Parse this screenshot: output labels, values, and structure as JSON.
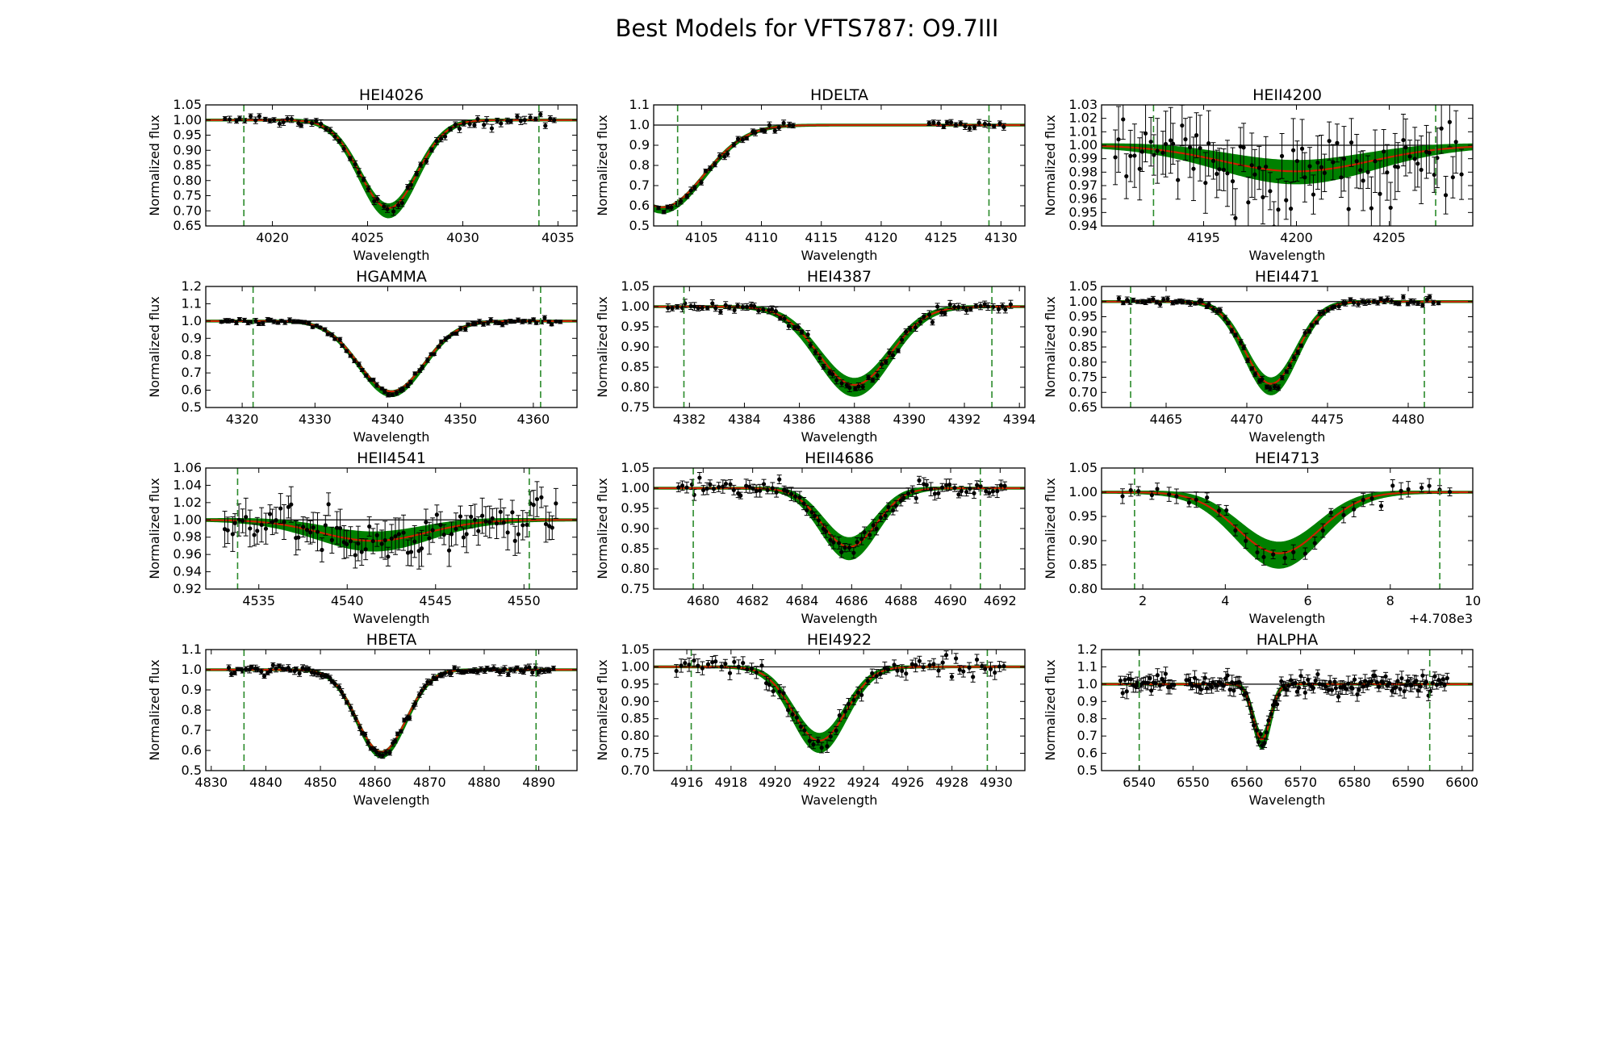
{
  "figure_title": "Best Models for VFTS787: O9.7III",
  "colors": {
    "model_band": "#008000",
    "best_fit": "#cc2200",
    "continuum": "#000000",
    "data": "#000000",
    "range_marker": "#2a8a2a"
  },
  "chart_data": [
    {
      "type": "line",
      "title": "HEI4026",
      "xlabel": "Wavelength",
      "ylabel": "Normalized flux",
      "xlim": [
        4016.5,
        4036
      ],
      "ylim": [
        0.65,
        1.05
      ],
      "xticks": [
        4020,
        4025,
        4030,
        4035
      ],
      "xtick_labels": [
        "4020",
        "4025",
        "4030",
        "4035"
      ],
      "yticks": [
        0.65,
        0.7,
        0.75,
        0.8,
        0.85,
        0.9,
        0.95,
        1.0,
        1.05
      ],
      "ytick_labels": [
        "0.65",
        "0.70",
        "0.75",
        "0.80",
        "0.85",
        "0.90",
        "0.95",
        "1.00",
        "1.05"
      ],
      "range_markers": [
        4018.5,
        4034
      ],
      "line_center": 4026.1,
      "depth": 0.3,
      "width": 1.5,
      "band": 0.02,
      "noise": 0.008,
      "n_points": 70,
      "data_extent": [
        4017.5,
        4035
      ],
      "axis_offset_label": ""
    },
    {
      "type": "line",
      "title": "HDELTA",
      "xlabel": "Wavelength",
      "ylabel": "Normalized flux",
      "xlim": [
        4101,
        4132
      ],
      "ylim": [
        0.5,
        1.1
      ],
      "xticks": [
        4105,
        4110,
        4115,
        4120,
        4125,
        4130
      ],
      "xtick_labels": [
        "4105",
        "4110",
        "4115",
        "4120",
        "4125",
        "4130"
      ],
      "yticks": [
        0.5,
        0.6,
        0.7,
        0.8,
        0.9,
        1.0,
        1.1
      ],
      "ytick_labels": [
        "0.5",
        "0.6",
        "0.7",
        "0.8",
        "0.9",
        "1.0",
        "1.1"
      ],
      "range_markers": [
        4103,
        4129
      ],
      "line_center": 4101.7,
      "depth": 0.42,
      "width": 3.5,
      "band": 0.012,
      "noise": 0.01,
      "n_points": 75,
      "data_extent": [
        4101.3,
        4130.5
      ],
      "data_gap": [
        4113,
        4124
      ],
      "axis_offset_label": ""
    },
    {
      "type": "line",
      "title": "HEII4200",
      "xlabel": "Wavelength",
      "ylabel": "Normalized flux",
      "xlim": [
        4189.5,
        4209.5
      ],
      "ylim": [
        0.94,
        1.03
      ],
      "xticks": [
        4195,
        4200,
        4205
      ],
      "xtick_labels": [
        "4195",
        "4200",
        "4205"
      ],
      "yticks": [
        0.94,
        0.95,
        0.96,
        0.97,
        0.98,
        0.99,
        1.0,
        1.01,
        1.02,
        1.03
      ],
      "ytick_labels": [
        "0.94",
        "0.95",
        "0.96",
        "0.97",
        "0.98",
        "0.99",
        "1.00",
        "1.01",
        "1.02",
        "1.03"
      ],
      "range_markers": [
        4192.3,
        4207.5
      ],
      "line_center": 4200,
      "depth": 0.02,
      "width": 4,
      "band": 0.008,
      "noise": 0.015,
      "n_points": 90,
      "data_extent": [
        4190.2,
        4209
      ],
      "axis_offset_label": ""
    },
    {
      "type": "line",
      "title": "HGAMMA",
      "xlabel": "Wavelength",
      "ylabel": "Normalized flux",
      "xlim": [
        4315,
        4366
      ],
      "ylim": [
        0.5,
        1.2
      ],
      "xticks": [
        4320,
        4330,
        4340,
        4350,
        4360
      ],
      "xtick_labels": [
        "4320",
        "4330",
        "4340",
        "4350",
        "4360"
      ],
      "yticks": [
        0.5,
        0.6,
        0.7,
        0.8,
        0.9,
        1.0,
        1.1,
        1.2
      ],
      "ytick_labels": [
        "0.5",
        "0.6",
        "0.7",
        "0.8",
        "0.9",
        "1.0",
        "1.1",
        "1.2"
      ],
      "range_markers": [
        4321.5,
        4361
      ],
      "line_center": 4340.5,
      "depth": 0.42,
      "width": 4.5,
      "band": 0.012,
      "noise": 0.008,
      "n_points": 90,
      "data_extent": [
        4317,
        4364
      ],
      "axis_offset_label": ""
    },
    {
      "type": "line",
      "title": "HEI4387",
      "xlabel": "Wavelength",
      "ylabel": "Normalized flux",
      "xlim": [
        4380.7,
        4394.2
      ],
      "ylim": [
        0.75,
        1.05
      ],
      "xticks": [
        4382,
        4384,
        4386,
        4388,
        4390,
        4392,
        4394
      ],
      "xtick_labels": [
        "4382",
        "4384",
        "4386",
        "4388",
        "4390",
        "4392",
        "4394"
      ],
      "yticks": [
        0.75,
        0.8,
        0.85,
        0.9,
        0.95,
        1.0,
        1.05
      ],
      "ytick_labels": [
        "0.75",
        "0.80",
        "0.85",
        "0.90",
        "0.95",
        "1.00",
        "1.05"
      ],
      "range_markers": [
        4381.8,
        4393
      ],
      "line_center": 4388,
      "depth": 0.2,
      "width": 1.3,
      "band": 0.02,
      "noise": 0.006,
      "n_points": 80,
      "data_extent": [
        4381.2,
        4393.8
      ],
      "axis_offset_label": ""
    },
    {
      "type": "line",
      "title": "HEI4471",
      "xlabel": "Wavelength",
      "ylabel": "Normalized flux",
      "xlim": [
        4461,
        4484
      ],
      "ylim": [
        0.65,
        1.05
      ],
      "xticks": [
        4465,
        4470,
        4475,
        4480
      ],
      "xtick_labels": [
        "4465",
        "4470",
        "4475",
        "4480"
      ],
      "yticks": [
        0.65,
        0.7,
        0.75,
        0.8,
        0.85,
        0.9,
        0.95,
        1.0,
        1.05
      ],
      "ytick_labels": [
        "0.65",
        "0.70",
        "0.75",
        "0.80",
        "0.85",
        "0.90",
        "0.95",
        "1.00",
        "1.05"
      ],
      "range_markers": [
        4462.8,
        4481
      ],
      "line_center": 4471.5,
      "depth": 0.28,
      "width": 1.6,
      "band": 0.025,
      "noise": 0.006,
      "n_points": 85,
      "data_extent": [
        4462,
        4482
      ],
      "axis_offset_label": ""
    },
    {
      "type": "line",
      "title": "HEII4541",
      "xlabel": "Wavelength",
      "ylabel": "Normalized flux",
      "xlim": [
        4532,
        4553
      ],
      "ylim": [
        0.92,
        1.06
      ],
      "xticks": [
        4535,
        4540,
        4545,
        4550
      ],
      "xtick_labels": [
        "4535",
        "4540",
        "4545",
        "4550"
      ],
      "yticks": [
        0.92,
        0.94,
        0.96,
        0.98,
        1.0,
        1.02,
        1.04,
        1.06
      ],
      "ytick_labels": [
        "0.92",
        "0.94",
        "0.96",
        "0.98",
        "1.00",
        "1.02",
        "1.04",
        "1.06"
      ],
      "range_markers": [
        4533.8,
        4550.3
      ],
      "line_center": 4541.5,
      "depth": 0.025,
      "width": 3,
      "band": 0.01,
      "noise": 0.013,
      "n_points": 90,
      "data_extent": [
        4533,
        4552
      ],
      "axis_offset_label": ""
    },
    {
      "type": "line",
      "title": "HEII4686",
      "xlabel": "Wavelength",
      "ylabel": "Normalized flux",
      "xlim": [
        4678,
        4693
      ],
      "ylim": [
        0.75,
        1.05
      ],
      "xticks": [
        4680,
        4682,
        4684,
        4686,
        4688,
        4690,
        4692
      ],
      "xtick_labels": [
        "4680",
        "4682",
        "4684",
        "4686",
        "4688",
        "4690",
        "4692"
      ],
      "yticks": [
        0.75,
        0.8,
        0.85,
        0.9,
        0.95,
        1.0,
        1.05
      ],
      "ytick_labels": [
        "0.75",
        "0.80",
        "0.85",
        "0.90",
        "0.95",
        "1.00",
        "1.05"
      ],
      "range_markers": [
        4679.6,
        4691.2
      ],
      "line_center": 4685.9,
      "depth": 0.15,
      "width": 1.1,
      "band": 0.025,
      "noise": 0.01,
      "n_points": 85,
      "data_extent": [
        4679,
        4692.3
      ],
      "axis_offset_label": ""
    },
    {
      "type": "line",
      "title": "HEI4713",
      "xlabel": "Wavelength",
      "ylabel": "Normalized flux",
      "xlim": [
        1,
        10
      ],
      "ylim": [
        0.8,
        1.05
      ],
      "xticks": [
        2,
        4,
        6,
        8,
        10
      ],
      "xtick_labels": [
        "2",
        "4",
        "6",
        "8",
        "10"
      ],
      "yticks": [
        0.8,
        0.85,
        0.9,
        0.95,
        1.0,
        1.05
      ],
      "ytick_labels": [
        "0.80",
        "0.85",
        "0.90",
        "0.95",
        "1.00",
        "1.05"
      ],
      "range_markers": [
        1.8,
        9.2
      ],
      "line_center": 5.3,
      "depth": 0.13,
      "width": 1.0,
      "band": 0.025,
      "noise": 0.01,
      "n_points": 35,
      "data_extent": [
        1.4,
        9.6
      ],
      "axis_offset_label": "+4.708e3"
    },
    {
      "type": "line",
      "title": "HBETA",
      "xlabel": "Wavelength",
      "ylabel": "Normalized flux",
      "xlim": [
        4829,
        4897
      ],
      "ylim": [
        0.5,
        1.1
      ],
      "xticks": [
        4830,
        4840,
        4850,
        4860,
        4870,
        4880,
        4890
      ],
      "xtick_labels": [
        "4830",
        "4840",
        "4850",
        "4860",
        "4870",
        "4880",
        "4890"
      ],
      "yticks": [
        0.5,
        0.6,
        0.7,
        0.8,
        0.9,
        1.0,
        1.1
      ],
      "ytick_labels": [
        "0.5",
        "0.6",
        "0.7",
        "0.8",
        "0.9",
        "1.0",
        "1.1"
      ],
      "range_markers": [
        4836,
        4889.5
      ],
      "line_center": 4861.2,
      "depth": 0.42,
      "width": 4.5,
      "band": 0.012,
      "noise": 0.01,
      "n_points": 110,
      "data_extent": [
        4833,
        4893
      ],
      "axis_offset_label": ""
    },
    {
      "type": "line",
      "title": "HEI4922",
      "xlabel": "Wavelength",
      "ylabel": "Normalized flux",
      "xlim": [
        4914.5,
        4931.3
      ],
      "ylim": [
        0.7,
        1.05
      ],
      "xticks": [
        4916,
        4918,
        4920,
        4922,
        4924,
        4926,
        4928,
        4930
      ],
      "xtick_labels": [
        "4916",
        "4918",
        "4920",
        "4922",
        "4924",
        "4926",
        "4928",
        "4930"
      ],
      "yticks": [
        0.7,
        0.75,
        0.8,
        0.85,
        0.9,
        0.95,
        1.0,
        1.05
      ],
      "ytick_labels": [
        "0.70",
        "0.75",
        "0.80",
        "0.85",
        "0.90",
        "0.95",
        "1.00",
        "1.05"
      ],
      "range_markers": [
        4916.2,
        4929.6
      ],
      "line_center": 4922,
      "depth": 0.22,
      "width": 1.2,
      "band": 0.025,
      "noise": 0.012,
      "n_points": 75,
      "data_extent": [
        4915.5,
        4930.5
      ],
      "axis_offset_label": ""
    },
    {
      "type": "line",
      "title": "HALPHA",
      "xlabel": "Wavelength",
      "ylabel": "Normalized flux",
      "xlim": [
        6533,
        6602
      ],
      "ylim": [
        0.5,
        1.2
      ],
      "xticks": [
        6540,
        6550,
        6560,
        6570,
        6580,
        6590,
        6600
      ],
      "xtick_labels": [
        "6540",
        "6550",
        "6560",
        "6570",
        "6580",
        "6590",
        "6600"
      ],
      "yticks": [
        0.5,
        0.6,
        0.7,
        0.8,
        0.9,
        1.0,
        1.1,
        1.2
      ],
      "ytick_labels": [
        "0.5",
        "0.6",
        "0.7",
        "0.8",
        "0.9",
        "1.0",
        "1.1",
        "1.2"
      ],
      "range_markers": [
        6540,
        6594
      ],
      "line_center": 6562.8,
      "depth": 0.33,
      "width": 1.6,
      "band": 0.04,
      "noise": 0.025,
      "n_points": 160,
      "data_extent": [
        6536.5,
        6597.5
      ],
      "data_gap": [
        6546.5,
        6548.5
      ],
      "axis_offset_label": ""
    }
  ]
}
